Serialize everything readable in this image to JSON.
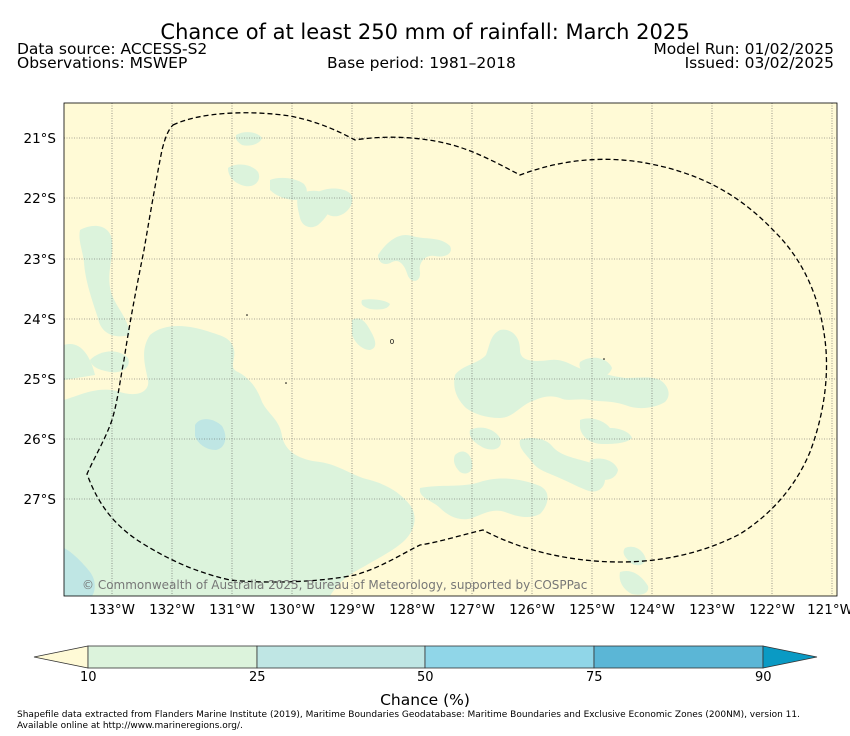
{
  "title": "Chance of at least 250 mm of rainfall: March 2025",
  "header": {
    "data_source": "Data source: ACCESS-S2",
    "observations": "Observations: MSWEP",
    "base_period": "Base period: 1981–2018",
    "model_run": "Model Run: 01/02/2025",
    "issued": "Issued: 03/02/2025"
  },
  "map": {
    "lat_labels": [
      "21°S",
      "22°S",
      "23°S",
      "24°S",
      "25°S",
      "26°S",
      "27°S"
    ],
    "lon_labels": [
      "133°W",
      "132°W",
      "131°W",
      "130°W",
      "129°W",
      "128°W",
      "127°W",
      "126°W",
      "125°W",
      "124°W",
      "123°W",
      "122°W",
      "121°W"
    ],
    "copyright": "© Commonwealth of Australia 2025, Bureau of Meteorology, supported by COSPPac",
    "small_label": "0",
    "colors": {
      "below_10": "#fffad6",
      "10_25": "#dcf3dc",
      "25_50": "#bfe6e4",
      "50_75": "#90d6e8",
      "75_90": "#5bb6d6",
      "above_90": "#0a9ac4",
      "grid": "#555555",
      "boundary": "#000000"
    }
  },
  "colorbar": {
    "label": "Chance (%)",
    "ticks": [
      "10",
      "25",
      "50",
      "75",
      "90"
    ]
  },
  "footnote": "Shapefile data extracted from Flanders Marine Institute (2019), Maritime Boundaries Geodatabase: Maritime Boundaries and Exclusive Economic Zones (200NM), version 11. Available online at http://www.marineregions.org/."
}
